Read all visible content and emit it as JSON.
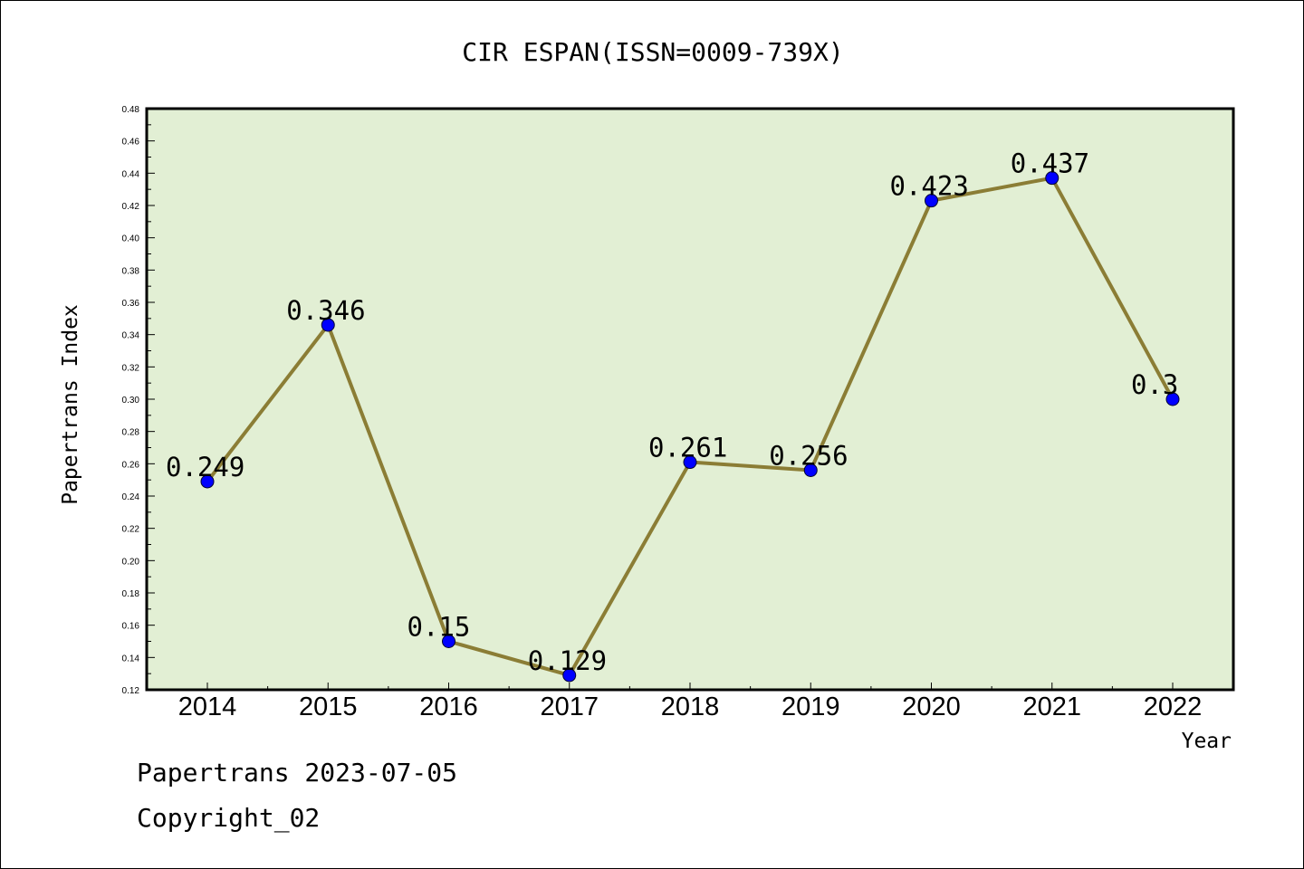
{
  "chart_data": {
    "type": "line",
    "title": "CIR ESPAN(ISSN=0009-739X)",
    "xlabel": "Year",
    "ylabel": "Papertrans Index",
    "categories": [
      "2014",
      "2015",
      "2016",
      "2017",
      "2018",
      "2019",
      "2020",
      "2021",
      "2022"
    ],
    "series": [
      {
        "values": [
          0.249,
          0.346,
          0.15,
          0.129,
          0.261,
          0.256,
          0.423,
          0.437,
          0.3
        ],
        "labels": [
          "0.249",
          "0.346",
          "0.15",
          "0.129",
          "0.261",
          "0.256",
          "0.423",
          "0.437",
          "0.3"
        ],
        "line_color": "#8b7d35",
        "marker_color": "#0000ff"
      }
    ],
    "ylim": [
      0.12,
      0.48
    ],
    "yticks": [
      "0.12",
      "0.14",
      "0.16",
      "0.18",
      "0.20",
      "0.22",
      "0.24",
      "0.26",
      "0.28",
      "0.30",
      "0.32",
      "0.34",
      "0.36",
      "0.38",
      "0.40",
      "0.42",
      "0.44",
      "0.46",
      "0.48"
    ],
    "plot_background": "#e2efd4",
    "grid": false,
    "legend": "none"
  },
  "footer": {
    "date_line": "Papertrans 2023-07-05",
    "copyright_line": "Copyright_02"
  }
}
